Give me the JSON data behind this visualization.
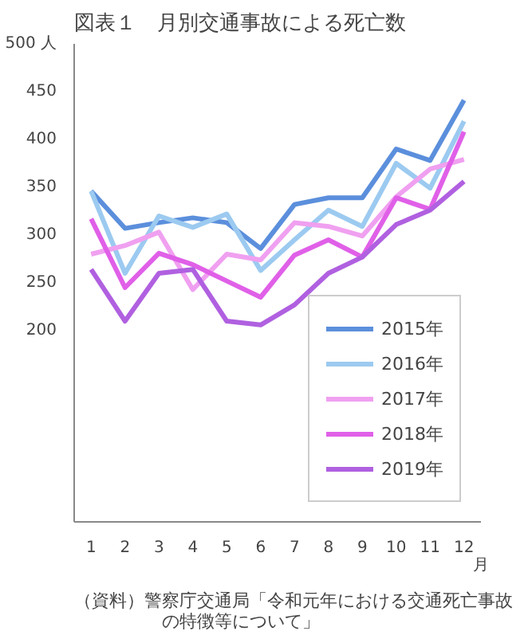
{
  "chart_data": {
    "type": "line",
    "title": "図表１　月別交通事故による死亡数",
    "xlabel": "月",
    "x": [
      1,
      2,
      3,
      4,
      5,
      6,
      7,
      8,
      9,
      10,
      11,
      12
    ],
    "xlim": [
      0.5,
      12.5
    ],
    "xticks": [
      1,
      2,
      3,
      4,
      5,
      6,
      7,
      8,
      9,
      10,
      11,
      12
    ],
    "ylim": [
      0,
      500
    ],
    "yticks": [
      200,
      250,
      300,
      350,
      400,
      450,
      {
        "value": 500,
        "label": "500 人"
      }
    ],
    "series": [
      {
        "name": "2015年",
        "color": "#5b8fdc",
        "values": [
          346,
          307,
          313,
          318,
          313,
          286,
          332,
          339,
          339,
          390,
          378,
          441
        ]
      },
      {
        "name": "2016年",
        "color": "#9ccaf0",
        "values": [
          346,
          260,
          320,
          308,
          322,
          263,
          295,
          326,
          309,
          375,
          349,
          419
        ]
      },
      {
        "name": "2017年",
        "color": "#f0a0f0",
        "values": [
          280,
          289,
          303,
          243,
          280,
          274,
          313,
          309,
          299,
          340,
          369,
          379
        ]
      },
      {
        "name": "2018年",
        "color": "#e060e8",
        "values": [
          317,
          245,
          281,
          269,
          252,
          235,
          279,
          295,
          277,
          339,
          327,
          408
        ]
      },
      {
        "name": "2019年",
        "color": "#b060e0",
        "values": [
          264,
          210,
          260,
          264,
          210,
          206,
          227,
          260,
          277,
          311,
          326,
          356
        ]
      }
    ],
    "legend": "bottom right",
    "grid": false,
    "marker": "none",
    "line_style": "solid",
    "annotations": [
      "（資料）警察庁交通局「令和元年における交通死亡事故の特徴等について」"
    ]
  }
}
